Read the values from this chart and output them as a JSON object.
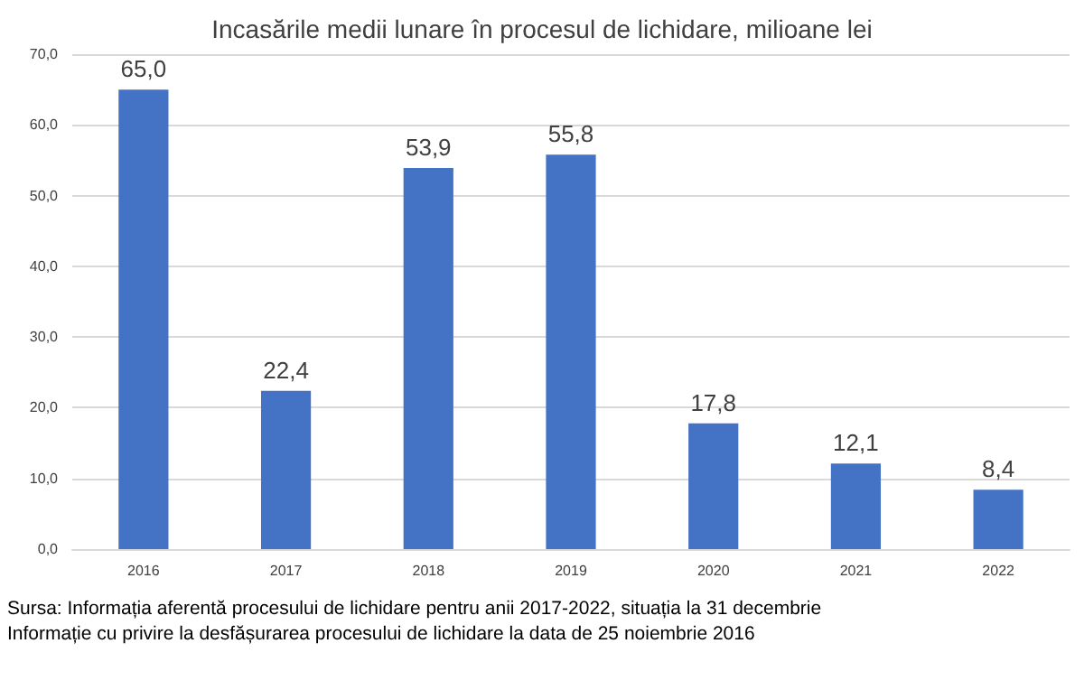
{
  "chart_data": {
    "type": "bar",
    "title": "Incasările medii lunare în procesul de lichidare, milioane lei",
    "categories": [
      "2016",
      "2017",
      "2018",
      "2019",
      "2020",
      "2021",
      "2022"
    ],
    "values": [
      65.0,
      22.4,
      53.9,
      55.8,
      17.8,
      12.1,
      8.4
    ],
    "value_labels": [
      "65,0",
      "22,4",
      "53,9",
      "55,8",
      "17,8",
      "12,1",
      "8,4"
    ],
    "color": "#4472c4",
    "ylim": [
      0,
      70
    ],
    "yticks": [
      {
        "value": 0,
        "label": "0,0"
      },
      {
        "value": 10,
        "label": "10,0"
      },
      {
        "value": 20,
        "label": "20,0"
      },
      {
        "value": 30,
        "label": "30,0"
      },
      {
        "value": 40,
        "label": "40,0"
      },
      {
        "value": 50,
        "label": "50,0"
      },
      {
        "value": 60,
        "label": "60,0"
      },
      {
        "value": 70,
        "label": "70,0"
      }
    ],
    "grid": "y",
    "annotations": [
      "Sursa: Informația aferentă procesului de lichidare pentru anii 2017-2022, situația la 31 decembrie",
      "Informație cu privire la desfășurarea procesului de lichidare la data de 25 noiembrie 2016"
    ]
  }
}
